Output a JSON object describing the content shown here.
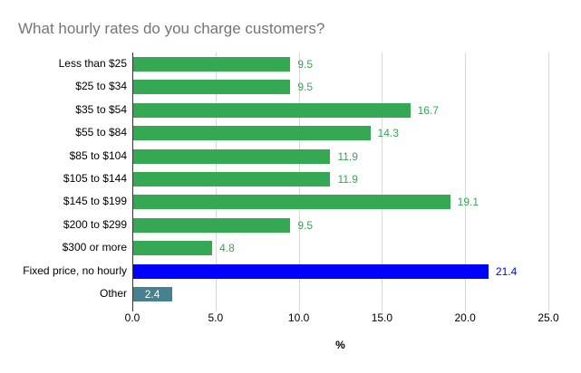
{
  "title": "What hourly rates do you charge customers?",
  "chart_data": {
    "type": "bar",
    "orientation": "horizontal",
    "title": "What hourly rates do you charge customers?",
    "xlabel": "%",
    "ylabel": "",
    "xlim": [
      0,
      25
    ],
    "x_ticks": [
      0,
      5,
      10,
      15,
      20,
      25
    ],
    "x_tick_labels": [
      "0.0",
      "5.0",
      "10.0",
      "15.0",
      "20.0",
      "25.0"
    ],
    "grid": true,
    "legend": "none",
    "categories": [
      "Less than $25",
      "$25 to $34",
      "$35 to $54",
      "$55 to $84",
      "$85 to $104",
      "$105 to $144",
      "$145 to $199",
      "$200 to $299",
      "$300 or more",
      "Fixed price, no hourly",
      "Other"
    ],
    "values": [
      9.5,
      9.5,
      16.7,
      14.3,
      11.9,
      11.9,
      19.1,
      9.5,
      4.8,
      21.4,
      2.4
    ],
    "bars": [
      {
        "label": "Less than $25",
        "value": 9.5,
        "value_label": "9.5",
        "color": "#34a853",
        "label_color": "#34a853",
        "label_inside": false
      },
      {
        "label": "$25 to $34",
        "value": 9.5,
        "value_label": "9.5",
        "color": "#34a853",
        "label_color": "#34a853",
        "label_inside": false
      },
      {
        "label": "$35 to $54",
        "value": 16.7,
        "value_label": "16.7",
        "color": "#34a853",
        "label_color": "#34a853",
        "label_inside": false
      },
      {
        "label": "$55 to $84",
        "value": 14.3,
        "value_label": "14.3",
        "color": "#34a853",
        "label_color": "#34a853",
        "label_inside": false
      },
      {
        "label": "$85 to $104",
        "value": 11.9,
        "value_label": "11.9",
        "color": "#34a853",
        "label_color": "#34a853",
        "label_inside": false
      },
      {
        "label": "$105 to $144",
        "value": 11.9,
        "value_label": "11.9",
        "color": "#34a853",
        "label_color": "#34a853",
        "label_inside": false
      },
      {
        "label": "$145 to $199",
        "value": 19.1,
        "value_label": "19.1",
        "color": "#34a853",
        "label_color": "#34a853",
        "label_inside": false
      },
      {
        "label": "$200 to $299",
        "value": 9.5,
        "value_label": "9.5",
        "color": "#34a853",
        "label_color": "#34a853",
        "label_inside": false
      },
      {
        "label": "$300 or more",
        "value": 4.8,
        "value_label": "4.8",
        "color": "#34a853",
        "label_color": "#34a853",
        "label_inside": false
      },
      {
        "label": "Fixed price, no hourly",
        "value": 21.4,
        "value_label": "21.4",
        "color": "#0000ff",
        "label_color": "#0000ff",
        "label_inside": false
      },
      {
        "label": "Other",
        "value": 2.4,
        "value_label": "2.4",
        "color": "#45818e",
        "label_color": "#ffffff",
        "label_inside": true
      }
    ],
    "colors": {
      "bar_default": "#34a853",
      "bar_fixed_price": "#0000ff",
      "bar_other": "#45818e",
      "gridline": "#d9d9d9",
      "axis_line": "#333333",
      "title_text": "#757575",
      "tick_text": "#000000"
    }
  }
}
